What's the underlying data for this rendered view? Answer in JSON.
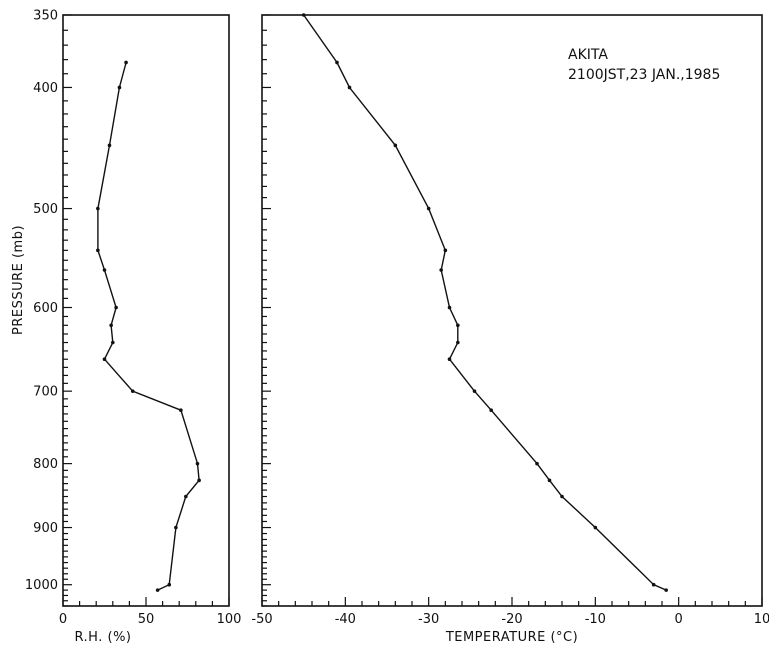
{
  "chart_data": [
    {
      "type": "line",
      "panel": "relative-humidity",
      "xlabel": "R.H. (%)",
      "ylabel": "PRESSURE (mb)",
      "xlim": [
        0,
        100
      ],
      "ylim": [
        1040,
        350
      ],
      "y_scale": "log",
      "x_ticks": [
        "0",
        "50",
        "100"
      ],
      "x_tick_values": [
        0,
        50,
        100
      ],
      "y_ticks": [
        "350",
        "400",
        "500",
        "600",
        "700",
        "800",
        "900",
        "1000"
      ],
      "y_tick_values": [
        350,
        400,
        500,
        600,
        700,
        800,
        900,
        1000
      ],
      "y_minor_step": 10,
      "x_minor_step": 10,
      "points": [
        {
          "y": 1010,
          "x": 57
        },
        {
          "y": 1000,
          "x": 64
        },
        {
          "y": 900,
          "x": 68
        },
        {
          "y": 850,
          "x": 74
        },
        {
          "y": 825,
          "x": 82
        },
        {
          "y": 800,
          "x": 81
        },
        {
          "y": 725,
          "x": 71
        },
        {
          "y": 700,
          "x": 42
        },
        {
          "y": 660,
          "x": 25
        },
        {
          "y": 640,
          "x": 30
        },
        {
          "y": 620,
          "x": 29
        },
        {
          "y": 600,
          "x": 32
        },
        {
          "y": 560,
          "x": 25
        },
        {
          "y": 540,
          "x": 21
        },
        {
          "y": 500,
          "x": 21
        },
        {
          "y": 445,
          "x": 28
        },
        {
          "y": 400,
          "x": 34
        },
        {
          "y": 382,
          "x": 38
        }
      ]
    },
    {
      "type": "line",
      "panel": "temperature",
      "xlabel": "TEMPERATURE (°C)",
      "ylabel": "",
      "xlim": [
        -50,
        10
      ],
      "ylim": [
        1040,
        350
      ],
      "y_scale": "log",
      "x_ticks": [
        "-50",
        "-40",
        "-30",
        "-20",
        "-10",
        "0",
        "10"
      ],
      "x_tick_values": [
        -50,
        -40,
        -30,
        -20,
        -10,
        0,
        10
      ],
      "y_tick_values": [
        350,
        400,
        500,
        600,
        700,
        800,
        900,
        1000
      ],
      "y_minor_step": 10,
      "x_minor_step": 2,
      "annotation": [
        "AKITA",
        "2100JST,23 JAN.,1985"
      ],
      "points": [
        {
          "y": 1010,
          "x": -1.5
        },
        {
          "y": 1000,
          "x": -3
        },
        {
          "y": 900,
          "x": -10
        },
        {
          "y": 850,
          "x": -14
        },
        {
          "y": 825,
          "x": -15.5
        },
        {
          "y": 800,
          "x": -17
        },
        {
          "y": 725,
          "x": -22.5
        },
        {
          "y": 700,
          "x": -24.5
        },
        {
          "y": 660,
          "x": -27.5
        },
        {
          "y": 640,
          "x": -26.5
        },
        {
          "y": 620,
          "x": -26.5
        },
        {
          "y": 600,
          "x": -27.5
        },
        {
          "y": 560,
          "x": -28.5
        },
        {
          "y": 540,
          "x": -28
        },
        {
          "y": 500,
          "x": -30
        },
        {
          "y": 445,
          "x": -34
        },
        {
          "y": 400,
          "x": -39.5
        },
        {
          "y": 382,
          "x": -41
        },
        {
          "y": 350,
          "x": -45
        }
      ]
    }
  ]
}
